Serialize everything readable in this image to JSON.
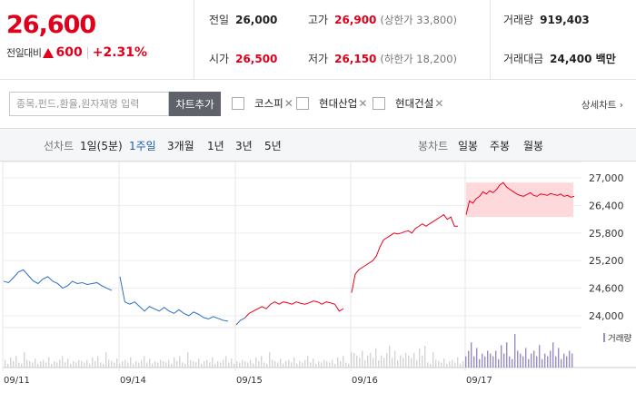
{
  "summary": {
    "price": "26,600",
    "change_label": "전일대비",
    "change_value": "600",
    "change_pct": "+2.31%"
  },
  "stats": {
    "prev_close": {
      "label": "전일",
      "value": "26,000"
    },
    "open": {
      "label": "시가",
      "value": "26,500"
    },
    "high": {
      "label": "고가",
      "value": "26,900",
      "sub": "(상한가 33,800)"
    },
    "low": {
      "label": "저가",
      "value": "26,150",
      "sub": "(하한가 18,200)"
    },
    "volume": {
      "label": "거래량",
      "value": "919,403"
    },
    "amount": {
      "label": "거래대금",
      "value": "24,400 백만"
    }
  },
  "compare": {
    "search_placeholder": "종목,펀드,환율,원자재명 입력",
    "add_button": "차트추가",
    "items": [
      "코스피",
      "현대산업",
      "현대건설"
    ],
    "detail_link": "상세차트 ›"
  },
  "period_tabs": {
    "label": "선차트",
    "items": [
      "1일(5분)",
      "1주일",
      "3개월",
      "1년",
      "3년",
      "5년"
    ],
    "active": "1주일"
  },
  "candle_tabs": {
    "label": "봉차트",
    "items": [
      "일봉",
      "주봉",
      "월봉"
    ]
  },
  "chart_data": {
    "type": "line",
    "title": "",
    "y_ticks": [
      "27,000",
      "26,400",
      "25,800",
      "25,200",
      "24,600",
      "24,000"
    ],
    "ylim": [
      23800,
      27200
    ],
    "x_labels": [
      "09/11",
      "09/14",
      "09/15",
      "09/16",
      "09/17"
    ],
    "reference_price": 26000,
    "volume_label": "거래량",
    "colors": {
      "above": "#e8001c",
      "below": "#2b6fc6",
      "highlight": "#fdd9dc",
      "volume": "#d4d4d8",
      "volume_recent": "#9b8cc8"
    },
    "series": [
      {
        "day": "09/11",
        "color": "blue",
        "values": [
          24750,
          24720,
          24830,
          24950,
          25000,
          24880,
          24760,
          24700,
          24800,
          24850,
          24750,
          24700,
          24600,
          24650,
          24750,
          24700,
          24720,
          24680,
          24700,
          24720,
          24650,
          24600,
          24550
        ]
      },
      {
        "day": "09/14",
        "color": "blue",
        "values": [
          24850,
          24300,
          24250,
          24300,
          24200,
          24100,
          24200,
          24150,
          24100,
          24180,
          24100,
          24050,
          24130,
          24050,
          24000,
          24080,
          24030,
          23960,
          23930,
          23980,
          23940,
          23900,
          23880
        ]
      },
      {
        "day": "09/15",
        "color": "mixed",
        "values": [
          23800,
          23900,
          23950,
          24050,
          24100,
          24150,
          24200,
          24150,
          24250,
          24300,
          24250,
          24300,
          24280,
          24250,
          24300,
          24270,
          24250,
          24280,
          24320,
          24300,
          24250,
          24300,
          24280,
          24250,
          24100,
          24150
        ]
      },
      {
        "day": "09/16",
        "color": "red",
        "values": [
          24500,
          24900,
          25000,
          25050,
          25100,
          25150,
          25200,
          25300,
          25500,
          25650,
          25700,
          25750,
          25800,
          25780,
          25800,
          25830,
          25850,
          25800,
          25900,
          25950,
          26000,
          25950,
          26000,
          26050,
          26100,
          26150,
          26200,
          26100,
          26150,
          25950,
          25950
        ]
      },
      {
        "day": "09/17",
        "color": "red",
        "values": [
          26200,
          26500,
          26450,
          26550,
          26600,
          26700,
          26650,
          26720,
          26680,
          26750,
          26850,
          26900,
          26800,
          26750,
          26700,
          26650,
          26620,
          26600,
          26640,
          26680,
          26620,
          26600,
          26650,
          26640,
          26620,
          26660,
          26640,
          26620,
          26650,
          26600,
          26620,
          26580,
          26600
        ]
      }
    ]
  }
}
